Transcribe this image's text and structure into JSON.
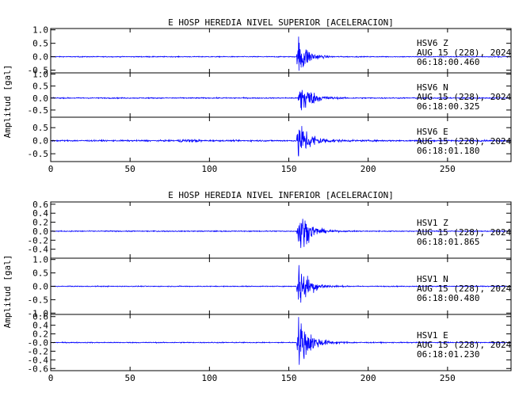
{
  "chart_data": [
    {
      "type": "line",
      "title": "E HOSP HEREDIA NIVEL SUPERIOR [ACELERACION]",
      "ylabel": "Amplitud [gal]",
      "xlabel": "",
      "xlim": [
        0,
        290
      ],
      "x_ticks": [
        0,
        50,
        100,
        150,
        200,
        250
      ],
      "series_color": "#0000ff",
      "grid": false,
      "traces": [
        {
          "name": "HSV6 Z",
          "station": "HSV6",
          "component": "Z",
          "date": "AUG 15 (228), 2024",
          "time": "06:18:00.460",
          "ylim": [
            -0.6,
            1.05
          ],
          "y_ticks": [
            1.0,
            0.5,
            0.0,
            -0.5
          ],
          "y_tick_labels": [
            "1.0",
            "0.5",
            "0.0",
            "-0.5"
          ],
          "onset": 156,
          "peak": 0.9,
          "noise": 0.015,
          "decay": 5
        },
        {
          "name": "HSV6 N",
          "station": "HSV6",
          "component": "N",
          "date": "AUG 15 (228), 2024",
          "time": "06:18:00.325",
          "ylim": [
            -0.8,
            1.05
          ],
          "y_ticks": [
            1.0,
            0.5,
            0.0,
            -0.5
          ],
          "y_tick_labels": [
            "1.0",
            "0.5",
            "0.0",
            "-0.5"
          ],
          "onset": 157,
          "peak": 0.9,
          "noise": 0.02,
          "decay": 6
        },
        {
          "name": "HSV6 E",
          "station": "HSV6",
          "component": "E",
          "date": "AUG 15 (228), 2024",
          "time": "06:18:01.180",
          "ylim": [
            -0.8,
            0.9
          ],
          "y_ticks": [
            0.5,
            0.0,
            -0.5
          ],
          "y_tick_labels": [
            "0.5",
            "0.0",
            "-0.5"
          ],
          "onset": 156,
          "peak": 0.8,
          "noise": 0.025,
          "decay": 7
        }
      ]
    },
    {
      "type": "line",
      "title": "E HOSP HEREDIA NIVEL INFERIOR [ACELERACION]",
      "ylabel": "Amplitud [gal]",
      "xlabel": "",
      "xlim": [
        0,
        290
      ],
      "x_ticks": [
        0,
        50,
        100,
        150,
        200,
        250
      ],
      "series_color": "#0000ff",
      "grid": false,
      "traces": [
        {
          "name": "HSV1 Z",
          "station": "HSV1",
          "component": "Z",
          "date": "AUG 15 (228), 2024",
          "time": "06:18:01.865",
          "ylim": [
            -0.6,
            0.65
          ],
          "y_ticks": [
            0.6,
            0.4,
            0.2,
            0.0,
            -0.2,
            -0.4
          ],
          "y_tick_labels": [
            "0.6",
            "0.4",
            "0.2",
            "0.0",
            "-0.2",
            "-0.4"
          ],
          "onset": 156,
          "peak": 0.55,
          "noise": 0.01,
          "decay": 6
        },
        {
          "name": "HSV1 N",
          "station": "HSV1",
          "component": "N",
          "date": "AUG 15 (228), 2024",
          "time": "06:18:00.480",
          "ylim": [
            -1.05,
            1.05
          ],
          "y_ticks": [
            1.0,
            0.5,
            0.0,
            -0.5,
            -1.0
          ],
          "y_tick_labels": [
            "1.0",
            "0.5",
            "0.0",
            "-0.5",
            "-1.0"
          ],
          "onset": 156,
          "peak": 0.95,
          "noise": 0.015,
          "decay": 6
        },
        {
          "name": "HSV1 E",
          "station": "HSV1",
          "component": "E",
          "date": "AUG 15 (228), 2024",
          "time": "06:18:01.230",
          "ylim": [
            -0.65,
            0.65
          ],
          "y_ticks": [
            0.6,
            0.4,
            0.2,
            0.0,
            -0.2,
            -0.4,
            -0.6
          ],
          "y_tick_labels": [
            "0.6",
            "0.4",
            "0.2",
            "-0.0",
            "-0.2",
            "-0.4",
            "-0.6"
          ],
          "onset": 156,
          "peak": 0.6,
          "noise": 0.01,
          "decay": 7
        }
      ]
    }
  ]
}
